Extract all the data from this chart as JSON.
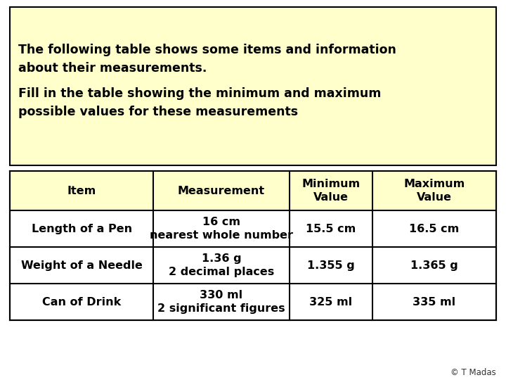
{
  "bg_color": "#ffffff",
  "light_yellow": "#ffffcc",
  "white": "#ffffff",
  "border_color": "#000000",
  "title_lines": [
    "The following table shows some items and information",
    "about their measurements.",
    "Fill in the table showing the minimum and maximum",
    "possible values for these measurements"
  ],
  "headers": [
    "Item",
    "Measurement",
    "Minimum\nValue",
    "Maximum\nValue"
  ],
  "rows": [
    [
      "Length of a Pen",
      "16 cm\nnearest whole number",
      "15.5 cm",
      "16.5 cm"
    ],
    [
      "Weight of a Needle",
      "1.36 g\n2 decimal places",
      "1.355 g",
      "1.365 g"
    ],
    [
      "Can of Drink",
      "330 ml\n2 significant figures",
      "325 ml",
      "335 ml"
    ]
  ],
  "footer_text": "© T Madas",
  "font_name": "DejaVu Sans",
  "title_fontsize": 12.5,
  "header_fontsize": 11.5,
  "cell_fontsize": 11.5
}
